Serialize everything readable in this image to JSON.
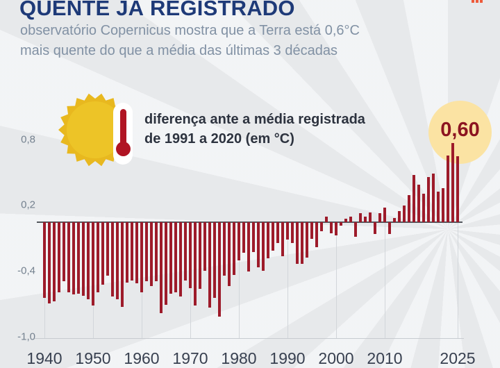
{
  "header": {
    "title": "QUENTE JÁ REGISTRADO",
    "subtitle_line1": "observatório Copernicus mostra que a Terra está 0,6°C",
    "subtitle_line2": "mais quente do que a média das últimas 3 décadas"
  },
  "legend": {
    "label_line1": "diferença ante a média registrada",
    "label_line2": "de 1991 a 2020 (em °C)"
  },
  "badge": {
    "value": "0,60"
  },
  "colors": {
    "background": "#e7e9eb",
    "title": "#1e3a78",
    "subtitle": "#8191a4",
    "bar": "#9d1b2a",
    "badge_bg": "#fbe3a3",
    "badge_text": "#8c1420",
    "sun_outer": "#e8b81f",
    "sun_inner": "#edc427",
    "thermometer_red": "#b01423",
    "accent_dashes": "#ee5a3a",
    "axis_tick_label": "#74818f",
    "x_axis_label": "#384050"
  },
  "chart_data": {
    "type": "bar",
    "title": "diferença ante a média registrada de 1991 a 2020 (em °C)",
    "unit": "°C",
    "baseline_period": "1991 a 2020",
    "x_start": 1940,
    "x_end": 2025,
    "values": [
      -0.69,
      -0.74,
      -0.72,
      -0.64,
      -0.54,
      -0.64,
      -0.66,
      -0.65,
      -0.67,
      -0.7,
      -0.76,
      -0.64,
      -0.57,
      -0.49,
      -0.68,
      -0.7,
      -0.77,
      -0.55,
      -0.53,
      -0.56,
      -0.64,
      -0.54,
      -0.58,
      -0.54,
      -0.83,
      -0.75,
      -0.65,
      -0.64,
      -0.68,
      -0.53,
      -0.6,
      -0.76,
      -0.61,
      -0.44,
      -0.78,
      -0.69,
      -0.86,
      -0.49,
      -0.58,
      -0.48,
      -0.35,
      -0.28,
      -0.45,
      -0.27,
      -0.41,
      -0.44,
      -0.33,
      -0.26,
      -0.19,
      -0.31,
      -0.16,
      -0.19,
      -0.38,
      -0.38,
      -0.32,
      -0.15,
      -0.23,
      -0.08,
      0.05,
      -0.1,
      -0.12,
      -0.03,
      0.03,
      0.05,
      -0.13,
      0.08,
      0.05,
      0.09,
      -0.11,
      0.08,
      0.13,
      -0.11,
      0.04,
      0.1,
      0.15,
      0.25,
      0.43,
      0.34,
      0.26,
      0.41,
      0.44,
      0.28,
      0.31,
      0.61,
      0.72,
      0.6
    ],
    "highlight": {
      "year": 2025,
      "label": "0,60"
    },
    "yticks": [
      {
        "label": "0,8",
        "value": 0.8
      },
      {
        "label": "0,2",
        "value": 0.2
      },
      {
        "label": "-0,4",
        "value": -0.4
      },
      {
        "label": "-1,0",
        "value": -1.0
      }
    ],
    "xticks": [
      1940,
      1950,
      1960,
      1970,
      1980,
      1990,
      2000,
      2010,
      2025
    ],
    "ylim": [
      -1.0,
      0.8
    ],
    "grid": "vertical-decades",
    "legend_position": "none"
  }
}
